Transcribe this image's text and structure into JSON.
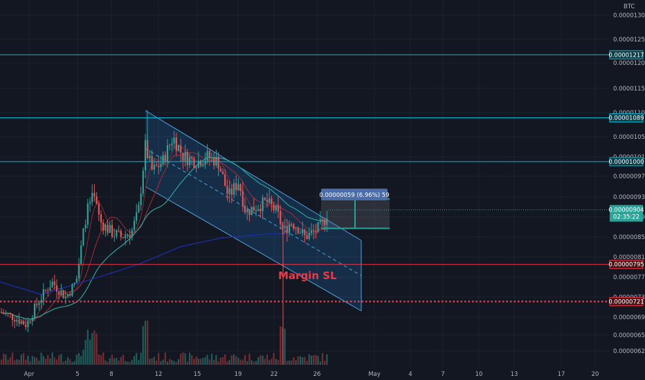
{
  "chart_data": {
    "type": "candlestick",
    "currency": "BTC",
    "y_axis": {
      "ticks": [
        "0.00001300",
        "0.00001250",
        "0.00001200",
        "0.00001150",
        "0.00001100",
        "0.00001050",
        "0.00001010",
        "0.00000970",
        "0.00000930",
        "0.00000890",
        "0.00000850",
        "0.00000810",
        "0.00000770",
        "0.00000730",
        "0.00000690",
        "0.00000655",
        "0.00000625"
      ],
      "tick_values": [
        1300,
        1250,
        1200,
        1150,
        1100,
        1050,
        1010,
        970,
        930,
        890,
        850,
        810,
        770,
        730,
        690,
        655,
        625
      ],
      "scale": "log"
    },
    "x_axis": {
      "ticks": [
        "Apr",
        "5",
        "8",
        "12",
        "15",
        "19",
        "22",
        "26",
        "May",
        "4",
        "7",
        "10",
        "13",
        "17",
        "20"
      ]
    },
    "horizontal_levels": [
      {
        "label": "0.00001217",
        "value": 1217,
        "color": "#00bcd4",
        "style": "solid"
      },
      {
        "label": "0.00001089",
        "value": 1089,
        "color": "#00bcd4",
        "style": "solid"
      },
      {
        "label": "0.00001000",
        "value": 1000,
        "color": "#00bcd4",
        "style": "solid"
      },
      {
        "label": "0.00000795",
        "value": 795,
        "color": "#f23645",
        "style": "solid"
      },
      {
        "label": "0.00000721",
        "value": 721,
        "color": "#f23645",
        "style": "dotted"
      }
    ],
    "current_price": {
      "label": "0.00000904",
      "value": 904,
      "countdown": "02:35:22",
      "color": "#26a69a"
    },
    "measure_tooltip": {
      "text": "0.00000059 (6.96%) 59",
      "color": "#4a6ca8"
    },
    "annotation": {
      "text": "Margin SL",
      "color": "#f23645"
    },
    "channel": {
      "color": "#2196f3"
    },
    "colors": {
      "up": "#26a69a",
      "down": "#ef5350",
      "background": "#131722",
      "grid": "#1e222d",
      "ma1": "#b22833",
      "ma2": "#b22833",
      "ma3": "#26a69a",
      "ma4": "#1e2ea8"
    }
  }
}
